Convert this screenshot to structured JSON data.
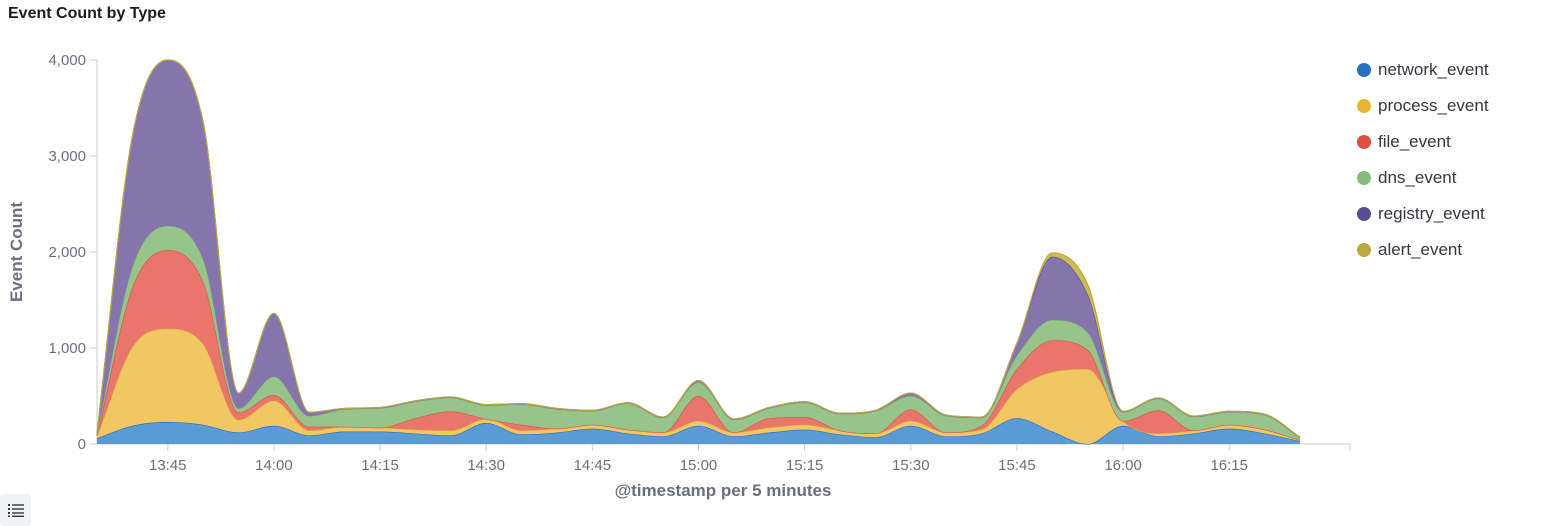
{
  "panel": {
    "title": "Event Count by Type"
  },
  "colors": {
    "network_event": "#5b9bd5",
    "process_event": "#f1c764",
    "file_event": "#e8766b",
    "dns_event": "#96c48a",
    "registry_event": "#8675ad",
    "alert_event": "#cbbd4f"
  },
  "legend_colors": {
    "network_event": "#2372c2",
    "process_event": "#e5b533",
    "file_event": "#dc4f41",
    "dns_event": "#85bc7a",
    "registry_event": "#5b4c96",
    "alert_event": "#bba93f"
  },
  "legend_toggle_icon": "list-icon",
  "chart_data": {
    "type": "area",
    "stacked": true,
    "title": "Event Count by Type",
    "xlabel": "@timestamp per 5 minutes",
    "ylabel": "Event Count",
    "ylim": [
      0,
      4000
    ],
    "yticks": [
      "0",
      "1,000",
      "2,000",
      "3,000",
      "4,000"
    ],
    "xticks": [
      "13:45",
      "14:00",
      "14:15",
      "14:30",
      "14:45",
      "15:00",
      "15:15",
      "15:30",
      "15:45",
      "16:00",
      "16:15"
    ],
    "legend_position": "top-right",
    "x": [
      "13:35",
      "13:40",
      "13:45",
      "13:50",
      "13:55",
      "14:00",
      "14:05",
      "14:10",
      "14:15",
      "14:20",
      "14:25",
      "14:30",
      "14:35",
      "14:40",
      "14:45",
      "14:50",
      "14:55",
      "15:00",
      "15:05",
      "15:10",
      "15:15",
      "15:20",
      "15:25",
      "15:30",
      "15:35",
      "15:40",
      "15:45",
      "15:50",
      "15:55",
      "16:00",
      "16:05",
      "16:10",
      "16:15",
      "16:20",
      "16:25"
    ],
    "series": [
      {
        "name": "network_event",
        "values": [
          60,
          190,
          230,
          200,
          120,
          190,
          90,
          130,
          130,
          110,
          90,
          220,
          100,
          120,
          160,
          110,
          80,
          190,
          80,
          120,
          150,
          100,
          70,
          190,
          80,
          110,
          270,
          130,
          0,
          190,
          80,
          110,
          160,
          110,
          30
        ]
      },
      {
        "name": "process_event",
        "values": [
          20,
          820,
          970,
          840,
          130,
          260,
          50,
          50,
          40,
          40,
          50,
          40,
          40,
          40,
          40,
          40,
          40,
          50,
          40,
          50,
          50,
          40,
          40,
          50,
          40,
          40,
          300,
          620,
          780,
          50,
          30,
          30,
          40,
          40,
          10
        ]
      },
      {
        "name": "file_event",
        "values": [
          10,
          620,
          820,
          650,
          80,
          60,
          40,
          0,
          0,
          120,
          200,
          0,
          60,
          0,
          0,
          0,
          0,
          260,
          0,
          100,
          80,
          0,
          0,
          120,
          0,
          40,
          210,
          330,
          200,
          0,
          240,
          0,
          0,
          0,
          0
        ]
      },
      {
        "name": "dns_event",
        "values": [
          10,
          210,
          250,
          230,
          40,
          190,
          110,
          180,
          200,
          170,
          140,
          140,
          210,
          200,
          140,
          270,
          150,
          140,
          130,
          100,
          150,
          170,
          230,
          140,
          170,
          80,
          140,
          210,
          180,
          90,
          120,
          140,
          130,
          150,
          20
        ]
      },
      {
        "name": "registry_event",
        "values": [
          10,
          1360,
          1730,
          1430,
          160,
          660,
          40,
          10,
          10,
          10,
          10,
          10,
          10,
          10,
          10,
          10,
          10,
          20,
          10,
          10,
          10,
          10,
          10,
          30,
          10,
          10,
          130,
          660,
          400,
          10,
          10,
          10,
          10,
          10,
          10
        ]
      },
      {
        "name": "alert_event",
        "values": [
          0,
          0,
          0,
          0,
          0,
          0,
          0,
          0,
          0,
          0,
          0,
          0,
          0,
          0,
          0,
          0,
          0,
          0,
          0,
          0,
          0,
          0,
          0,
          0,
          0,
          0,
          0,
          40,
          100,
          0,
          0,
          0,
          0,
          0,
          0
        ]
      }
    ]
  }
}
